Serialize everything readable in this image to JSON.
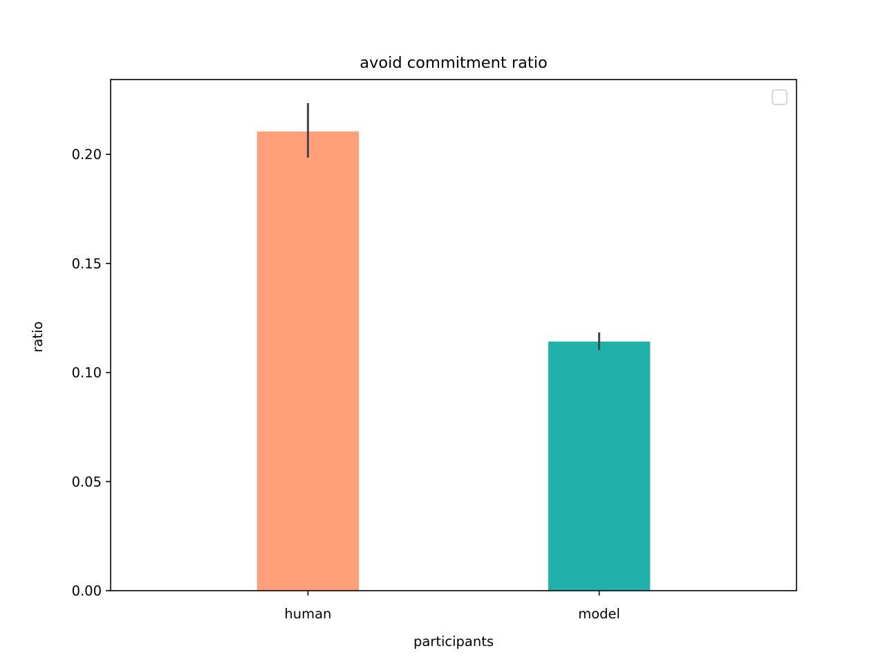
{
  "chart_data": {
    "type": "bar",
    "title": "avoid commitment ratio",
    "xlabel": "participants",
    "ylabel": "ratio",
    "categories": [
      "human",
      "model"
    ],
    "values": [
      0.2105,
      0.1142
    ],
    "error_low": [
      0.1985,
      0.1103
    ],
    "error_high": [
      0.2235,
      0.1184
    ],
    "colors": [
      "#ffa07a",
      "#20b2aa"
    ],
    "error_color": "#444444",
    "ylim": [
      0,
      0.2343
    ],
    "yticks": [
      0.0,
      0.05,
      0.1,
      0.15,
      0.2
    ],
    "ytick_labels": [
      "0.00",
      "0.05",
      "0.10",
      "0.15",
      "0.20"
    ],
    "legend": {
      "placement": "top-right",
      "entries": []
    },
    "grid": false
  }
}
